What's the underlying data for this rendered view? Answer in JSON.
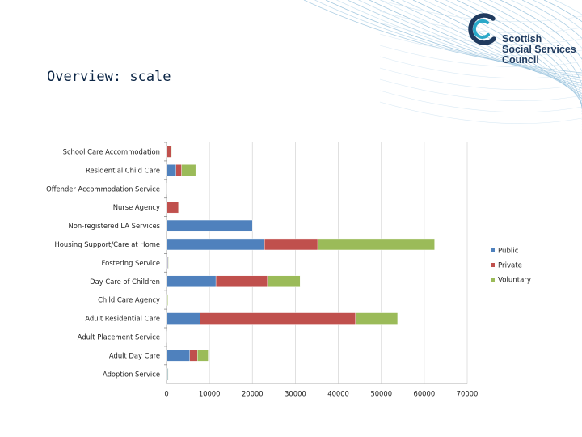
{
  "header": {
    "title": "Overview: scale",
    "logo": {
      "lines": [
        "Scottish",
        "Social Services",
        "Council"
      ],
      "brand_color": "#1f3a5e",
      "accent_color": "#29a8c8"
    }
  },
  "chart_data": {
    "type": "bar",
    "orientation": "horizontal",
    "stacked": true,
    "title": "",
    "xlabel": "",
    "ylabel": "",
    "xlim": [
      0,
      70000
    ],
    "x_ticks": [
      0,
      10000,
      20000,
      30000,
      40000,
      50000,
      60000,
      70000
    ],
    "grid": true,
    "legend_position": "right",
    "categories": [
      "School Care Accommodation",
      "Residential Child Care",
      "Offender Accommodation Service",
      "Nurse Agency",
      "Non-registered LA Services",
      "Housing Support/Care at Home",
      "Fostering Service",
      "Day Care of Children",
      "Child Care Agency",
      "Adult Residential Care",
      "Adult Placement Service",
      "Adult Day Care",
      "Adoption Service"
    ],
    "series": [
      {
        "name": "Public",
        "color": "#4f81bd",
        "values": [
          0,
          2200,
          0,
          0,
          20000,
          22800,
          300,
          11500,
          0,
          7800,
          100,
          5400,
          300
        ]
      },
      {
        "name": "Private",
        "color": "#c0504d",
        "values": [
          1000,
          1300,
          0,
          2800,
          0,
          12400,
          100,
          12000,
          100,
          36200,
          0,
          1800,
          0
        ]
      },
      {
        "name": "Voluntary",
        "color": "#9bbb59",
        "values": [
          200,
          3300,
          100,
          200,
          0,
          27200,
          100,
          7600,
          200,
          9800,
          0,
          2500,
          100
        ]
      }
    ]
  }
}
